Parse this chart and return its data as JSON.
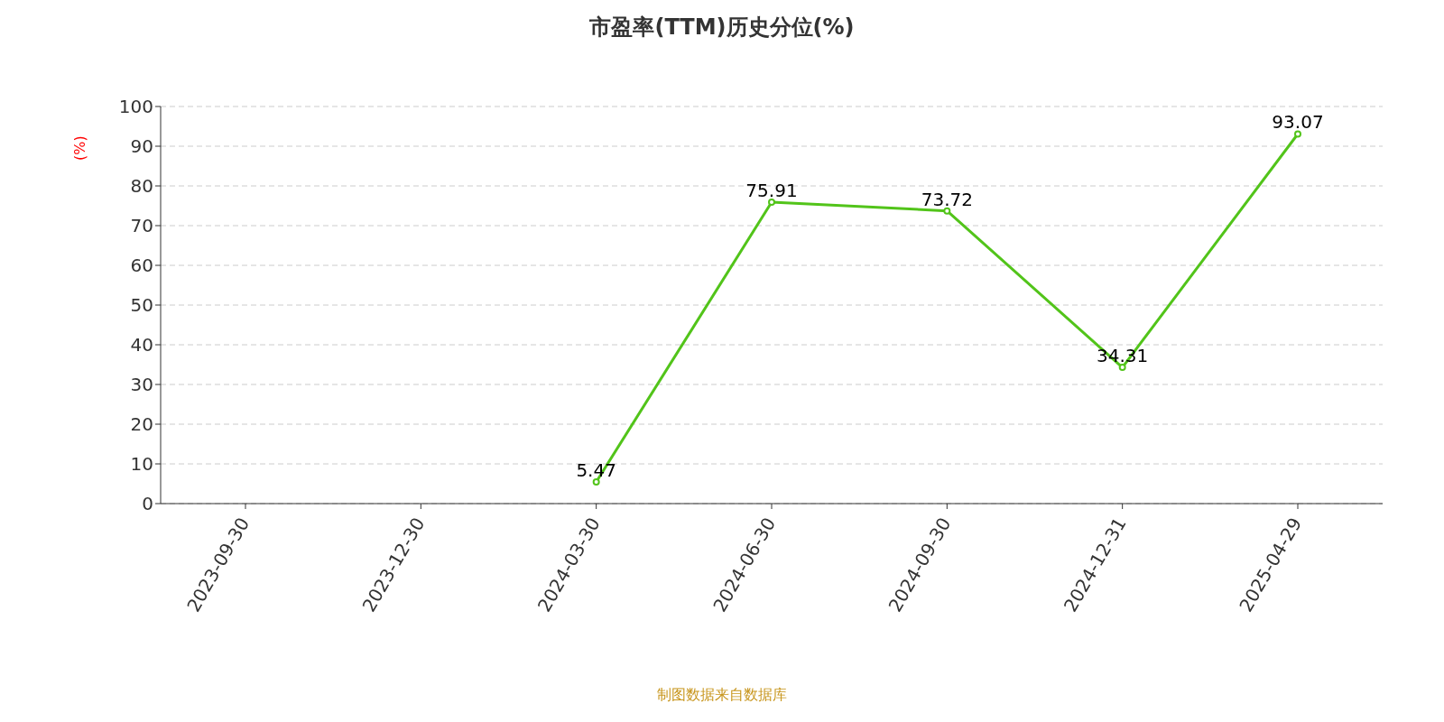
{
  "chart_data": {
    "type": "line",
    "title": "市盈率(TTM)历史分位(%)",
    "ylabel": "(%)",
    "categories": [
      "2023-09-30",
      "2023-12-30",
      "2024-03-30",
      "2024-06-30",
      "2024-09-30",
      "2024-12-31",
      "2025-04-29"
    ],
    "series": [
      {
        "color": "#52c41a",
        "values": [
          null,
          null,
          5.47,
          75.91,
          73.72,
          34.31,
          93.07
        ]
      }
    ],
    "ylim": [
      0,
      100
    ],
    "yticks": [
      0,
      10,
      20,
      30,
      40,
      50,
      60,
      70,
      80,
      90,
      100
    ],
    "grid": "y",
    "marker": "circle",
    "line_style": "solid",
    "data_labels": true,
    "annotations": [
      "制图数据来自数据库"
    ]
  }
}
